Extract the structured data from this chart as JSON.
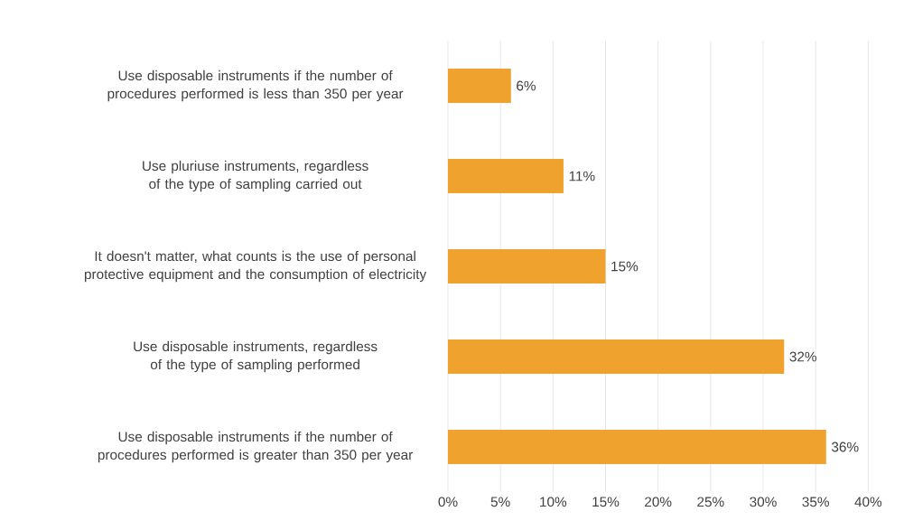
{
  "chart_data": {
    "type": "bar",
    "orientation": "horizontal",
    "categories": [
      "Use disposable instruments if the number of procedures performed is less than 350 per year",
      "Use pluriuse instruments, regardless of the type of sampling carried out",
      "It doesn't matter, what counts is the use of personal protective equipment and the consumption of electricity",
      "Use disposable instruments, regardless of the type of sampling performed",
      "Use disposable instruments if the number of procedures performed is greater than 350 per year"
    ],
    "values": [
      6,
      11,
      15,
      32,
      36
    ],
    "value_labels": [
      "6%",
      "11%",
      "15%",
      "32%",
      "36%"
    ],
    "color": "#f0a22e",
    "xlim": [
      0,
      40
    ],
    "xticks": [
      {
        "value": 0,
        "label": "0%"
      },
      {
        "value": 5,
        "label": "5%"
      },
      {
        "value": 10,
        "label": "10%"
      },
      {
        "value": 15,
        "label": "15%"
      },
      {
        "value": 20,
        "label": "20%"
      },
      {
        "value": 25,
        "label": "25%"
      },
      {
        "value": 30,
        "label": "30%"
      },
      {
        "value": 35,
        "label": "35%"
      },
      {
        "value": 40,
        "label": "40%"
      }
    ],
    "grid": "x"
  }
}
